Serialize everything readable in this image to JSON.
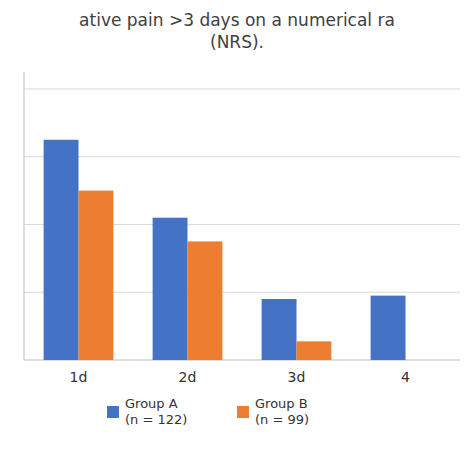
{
  "chart_data": {
    "type": "bar",
    "title": "ative pain >3 days on a numerical ra",
    "subtitle": "(NRS).",
    "categories": [
      "1d",
      "2d",
      "3d",
      "4"
    ],
    "series": [
      {
        "name": "Group A\n(n = 122)",
        "color": "#4472C4",
        "values": [
          6.5,
          4.2,
          1.8,
          1.9
        ]
      },
      {
        "name": "Group B\n(n = 99)",
        "color": "#ED7D31",
        "values": [
          5.0,
          3.5,
          0.55,
          0.0
        ]
      }
    ],
    "ylim": [
      0,
      8.5
    ],
    "yticks": [
      2,
      4,
      6,
      8
    ],
    "grid": true,
    "tick_labels": "x",
    "legend": "bottom"
  }
}
